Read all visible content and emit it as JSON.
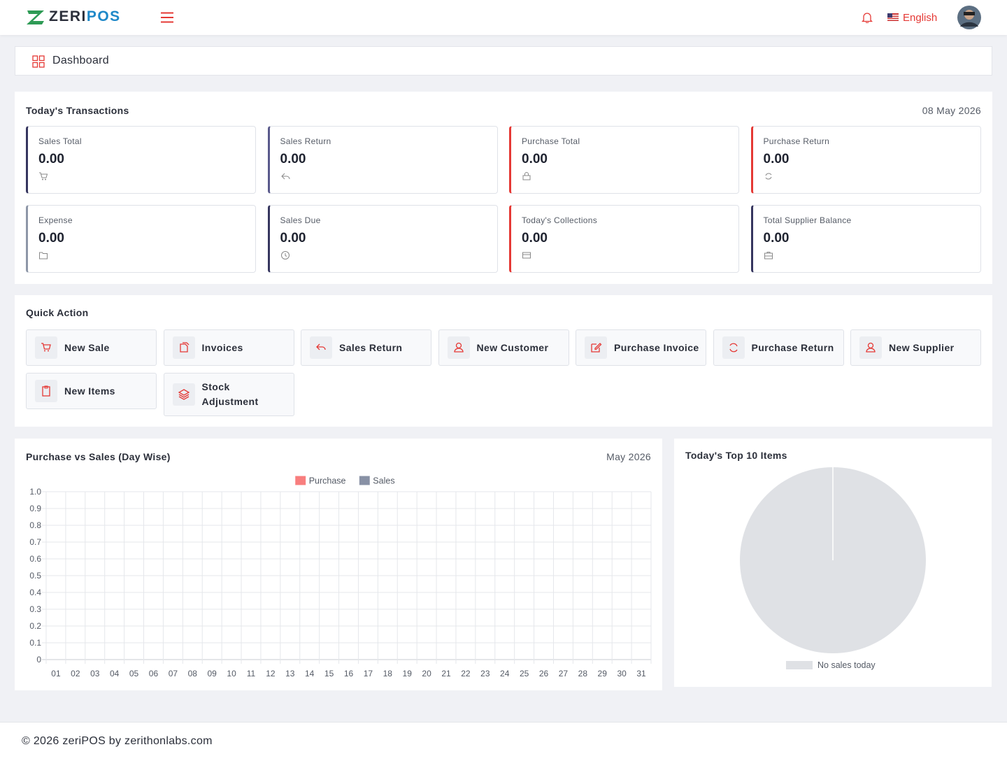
{
  "header": {
    "logo": [
      "ZERI",
      "POS"
    ],
    "language": "English"
  },
  "breadcrumb": "Dashboard",
  "transactions": {
    "title": "Today's Transactions",
    "date": "08 May 2026",
    "cards": [
      {
        "label": "Sales Total",
        "value": "0.00"
      },
      {
        "label": "Sales Return",
        "value": "0.00"
      },
      {
        "label": "Purchase Total",
        "value": "0.00"
      },
      {
        "label": "Purchase Return",
        "value": "0.00"
      },
      {
        "label": "Expense",
        "value": "0.00"
      },
      {
        "label": "Sales Due",
        "value": "0.00"
      },
      {
        "label": "Today's Collections",
        "value": "0.00"
      },
      {
        "label": "Total Supplier Balance",
        "value": "0.00"
      }
    ]
  },
  "quick_action": {
    "title": "Quick Action",
    "items": [
      "New Sale",
      "Invoices",
      "Sales Return",
      "New Customer",
      "Purchase Invoice",
      "Purchase Return",
      "New Supplier",
      "New Items",
      "Stock Adjustment"
    ]
  },
  "chart_data": [
    {
      "type": "bar",
      "title": "Purchase vs Sales (Day Wise)",
      "subtitle": "May 2026",
      "categories": [
        "01",
        "02",
        "03",
        "04",
        "05",
        "06",
        "07",
        "08",
        "09",
        "10",
        "11",
        "12",
        "13",
        "14",
        "15",
        "16",
        "17",
        "18",
        "19",
        "20",
        "21",
        "22",
        "23",
        "24",
        "25",
        "26",
        "27",
        "28",
        "29",
        "30",
        "31"
      ],
      "series": [
        {
          "name": "Purchase",
          "color": "#f87171",
          "values": [
            0,
            0,
            0,
            0,
            0,
            0,
            0,
            0,
            0,
            0,
            0,
            0,
            0,
            0,
            0,
            0,
            0,
            0,
            0,
            0,
            0,
            0,
            0,
            0,
            0,
            0,
            0,
            0,
            0,
            0,
            0
          ]
        },
        {
          "name": "Sales",
          "color": "#7c869c",
          "values": [
            0,
            0,
            0,
            0,
            0,
            0,
            0,
            0,
            0,
            0,
            0,
            0,
            0,
            0,
            0,
            0,
            0,
            0,
            0,
            0,
            0,
            0,
            0,
            0,
            0,
            0,
            0,
            0,
            0,
            0,
            0
          ]
        }
      ],
      "ylim": [
        0,
        1
      ],
      "yticks": [
        0,
        0.1,
        0.2,
        0.3,
        0.4,
        0.5,
        0.6,
        0.7,
        0.8,
        0.9,
        {
          "value": 1,
          "label": "1.0"
        }
      ],
      "grid": true,
      "legend": "top"
    },
    {
      "type": "pie",
      "title": "Today's Top 10 Items",
      "categories": [
        "No sales today"
      ],
      "values": [
        100
      ],
      "colors": [
        "#dfe1e5"
      ],
      "legend": "bottom"
    }
  ],
  "footer": "© 2026 zeriPOS by zerithonlabs.com"
}
